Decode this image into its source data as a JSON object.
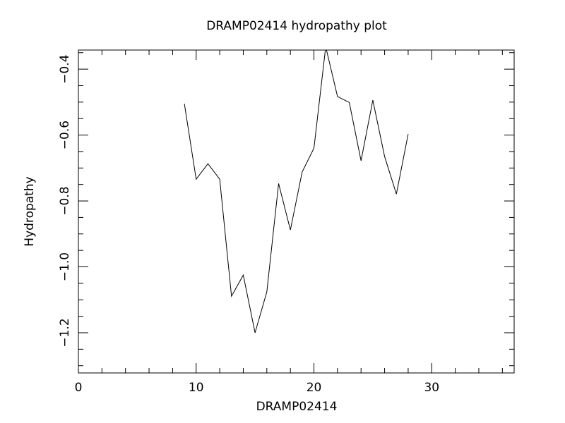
{
  "chart_data": {
    "type": "line",
    "title": "DRAMP02414 hydropathy plot",
    "xlabel": "DRAMP02414",
    "ylabel": "Hydropathy",
    "x": [
      9,
      10,
      11,
      12,
      13,
      14,
      15,
      16,
      17,
      18,
      19,
      20,
      21,
      22,
      23,
      24,
      25,
      26,
      27,
      28
    ],
    "series": [
      {
        "color": "#000000",
        "values": [
          -0.505,
          -0.734,
          -0.687,
          -0.734,
          -1.089,
          -1.025,
          -1.2,
          -1.076,
          -0.747,
          -0.888,
          -0.712,
          -0.64,
          -0.332,
          -0.483,
          -0.501,
          -0.678,
          -0.494,
          -0.665,
          -0.779,
          -0.597
        ]
      }
    ],
    "xlim": [
      0,
      37
    ],
    "ylim": [
      -1.322,
      -0.342
    ],
    "xticks": [
      0,
      10,
      20,
      30
    ],
    "xminorticks": [
      2,
      4,
      6,
      8,
      12,
      14,
      16,
      18,
      22,
      24,
      26,
      28,
      32,
      34,
      36
    ],
    "yticks": [
      {
        "value": -1.2,
        "label": "−1.2"
      },
      {
        "value": -1.0,
        "label": "−1.0"
      },
      {
        "value": -0.8,
        "label": "−0.8"
      },
      {
        "value": -0.6,
        "label": "−0.6"
      },
      {
        "value": -0.4,
        "label": "−0.4"
      }
    ],
    "yminorticks": [
      -1.3,
      -1.25,
      -1.15,
      -1.1,
      -1.05,
      -0.95,
      -0.9,
      -0.85,
      -0.75,
      -0.7,
      -0.65,
      -0.55,
      -0.5,
      -0.45,
      -0.35
    ]
  }
}
